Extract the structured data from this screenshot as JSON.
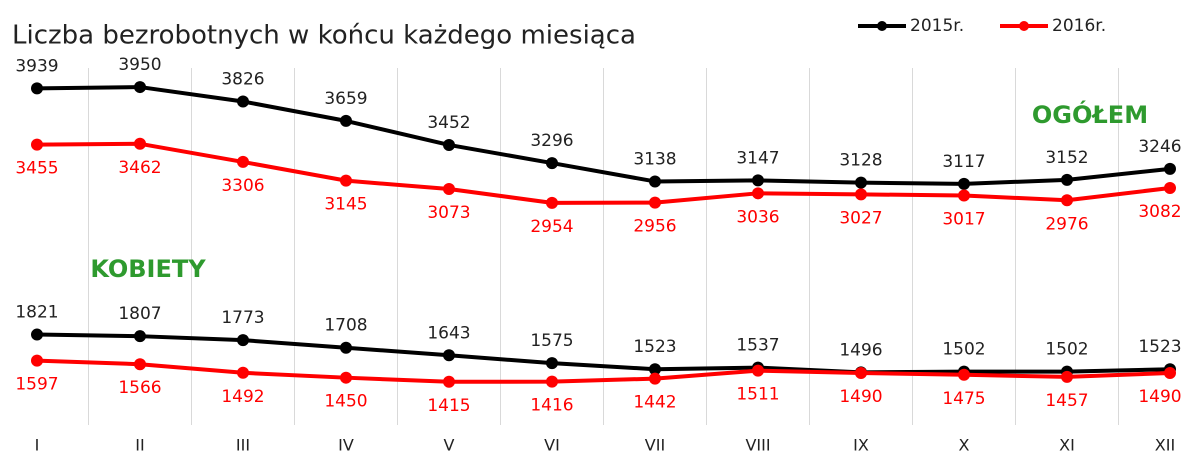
{
  "chart_data": {
    "type": "line",
    "title": "Liczba bezrobotnych w końcu każdego miesiąca",
    "categories": [
      "I",
      "II",
      "III",
      "IV",
      "V",
      "VI",
      "VII",
      "VIII",
      "IX",
      "X",
      "XI",
      "XII"
    ],
    "legend": [
      {
        "name": "2015r.",
        "color": "#000000"
      },
      {
        "name": "2016r.",
        "color": "#ff0000"
      }
    ],
    "legend_position": "top-right",
    "grid": true,
    "ylim": [
      1000,
      4200
    ],
    "groups": [
      {
        "label": "OGÓŁEM",
        "label_color": "#2e9a2e",
        "series": [
          {
            "values": [
              3939,
              3950,
              3826,
              3659,
              3452,
              3296,
              3138,
              3147,
              3128,
              3117,
              3152,
              3246
            ]
          },
          {
            "values": [
              3455,
              3462,
              3306,
              3145,
              3073,
              2954,
              2956,
              3036,
              3027,
              3017,
              2976,
              3082
            ]
          }
        ]
      },
      {
        "label": "KOBIETY",
        "label_color": "#2e9a2e",
        "series": [
          {
            "values": [
              1821,
              1807,
              1773,
              1708,
              1643,
              1575,
              1523,
              1537,
              1496,
              1502,
              1502,
              1523
            ]
          },
          {
            "values": [
              1597,
              1566,
              1492,
              1450,
              1415,
              1416,
              1442,
              1511,
              1490,
              1475,
              1457,
              1490
            ]
          }
        ]
      }
    ]
  }
}
